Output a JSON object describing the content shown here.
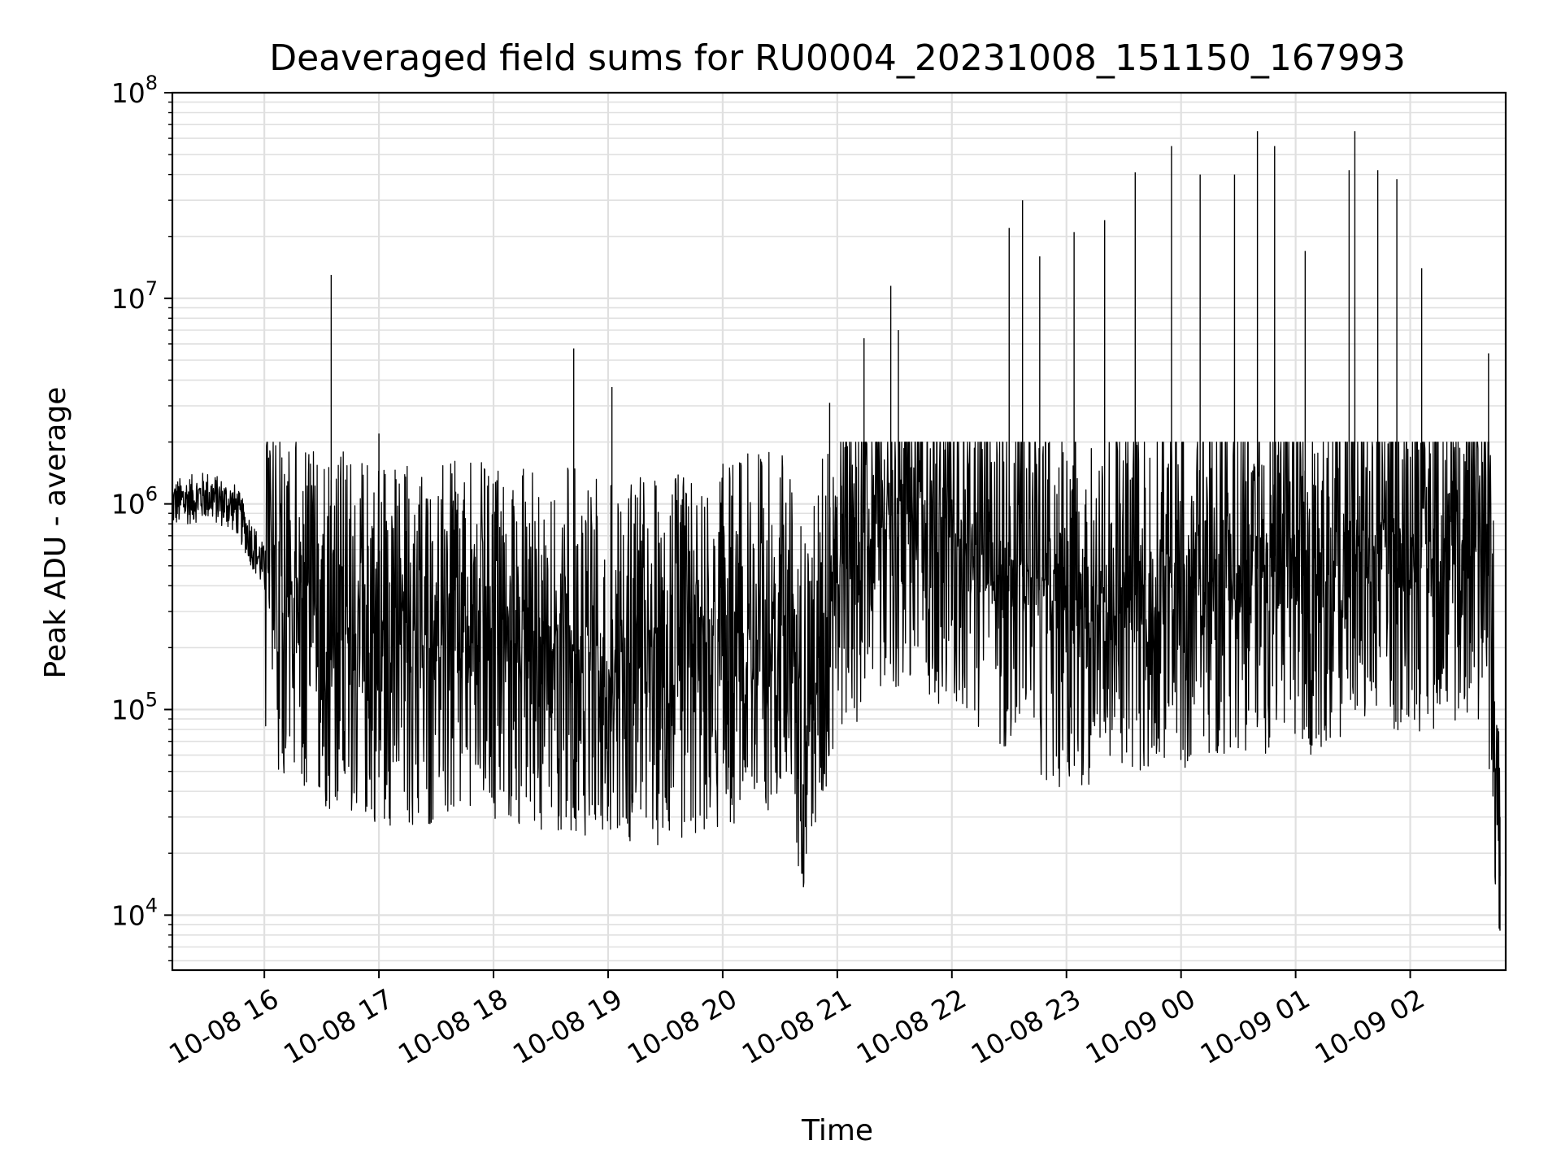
{
  "chart_data": {
    "type": "line",
    "title": "Deaveraged field sums for RU0004_20231008_151150_167993",
    "xlabel": "Time",
    "ylabel": "Peak ADU - average",
    "x_range": [
      "2023-10-08 15:11:50",
      "2023-10-09 02:50:00"
    ],
    "y_scale": "log",
    "ylim": [
      5400,
      100000000
    ],
    "grid": true,
    "line_color": "#000000",
    "grid_color": "#e0e0e0",
    "x_ticks": [
      {
        "value": "2023-10-08 16:00",
        "label": "10-08 16"
      },
      {
        "value": "2023-10-08 17:00",
        "label": "10-08 17"
      },
      {
        "value": "2023-10-08 18:00",
        "label": "10-08 18"
      },
      {
        "value": "2023-10-08 19:00",
        "label": "10-08 19"
      },
      {
        "value": "2023-10-08 20:00",
        "label": "10-08 20"
      },
      {
        "value": "2023-10-08 21:00",
        "label": "10-08 21"
      },
      {
        "value": "2023-10-08 22:00",
        "label": "10-08 22"
      },
      {
        "value": "2023-10-08 23:00",
        "label": "10-08 23"
      },
      {
        "value": "2023-10-09 00:00",
        "label": "10-09 00"
      },
      {
        "value": "2023-10-09 01:00",
        "label": "10-09 01"
      },
      {
        "value": "2023-10-09 02:00",
        "label": "10-09 02"
      }
    ],
    "y_ticks": [
      {
        "value": 10000,
        "base": "10",
        "exp": "4"
      },
      {
        "value": 100000,
        "base": "10",
        "exp": "5"
      },
      {
        "value": 1000000,
        "base": "10",
        "exp": "6"
      },
      {
        "value": 10000000,
        "base": "10",
        "exp": "7"
      },
      {
        "value": 100000000,
        "base": "10",
        "exp": "8"
      }
    ],
    "series": [
      {
        "points": [
          [
            "2023-10-08 15:11:50",
            1000000
          ],
          [
            "2023-10-08 15:30",
            1100000
          ],
          [
            "2023-10-08 15:45",
            950000
          ],
          [
            "2023-10-08 15:55",
            600000
          ],
          [
            "2023-10-08 16:10",
            300000
          ],
          [
            "2023-10-08 16:30",
            250000
          ],
          [
            "2023-10-08 17:00",
            220000
          ],
          [
            "2023-10-08 17:30",
            200000
          ],
          [
            "2023-10-08 18:00",
            210000
          ],
          [
            "2023-10-08 18:30",
            200000
          ],
          [
            "2023-10-08 19:00",
            180000
          ],
          [
            "2023-10-08 19:30",
            170000
          ],
          [
            "2023-10-08 20:00",
            200000
          ],
          [
            "2023-10-08 20:30",
            250000
          ],
          [
            "2023-10-08 20:45",
            90000
          ],
          [
            "2023-10-08 21:00",
            600000
          ],
          [
            "2023-10-08 21:30",
            900000
          ],
          [
            "2023-10-08 22:00",
            800000
          ],
          [
            "2023-10-08 22:30",
            500000
          ],
          [
            "2023-10-08 23:00",
            300000
          ],
          [
            "2023-10-08 23:30",
            350000
          ],
          [
            "2023-10-09 00:00",
            400000
          ],
          [
            "2023-10-09 00:30",
            500000
          ],
          [
            "2023-10-09 01:00",
            450000
          ],
          [
            "2023-10-09 01:30",
            550000
          ],
          [
            "2023-10-09 02:00",
            600000
          ],
          [
            "2023-10-09 02:40",
            700000
          ],
          [
            "2023-10-09 02:47",
            30000
          ]
        ],
        "spikes": [
          [
            "2023-10-08 16:35",
            13000000
          ],
          [
            "2023-10-08 17:00",
            2200000
          ],
          [
            "2023-10-08 18:42",
            5700000
          ],
          [
            "2023-10-08 19:02",
            3700000
          ],
          [
            "2023-10-08 21:14",
            6400000
          ],
          [
            "2023-10-08 21:28",
            11500000
          ],
          [
            "2023-10-08 21:32",
            7000000
          ],
          [
            "2023-10-08 22:30",
            22000000
          ],
          [
            "2023-10-08 22:37",
            30000000
          ],
          [
            "2023-10-08 23:20",
            24000000
          ],
          [
            "2023-10-08 23:36",
            41000000
          ],
          [
            "2023-10-08 23:55",
            55000000
          ],
          [
            "2023-10-09 00:10",
            40000000
          ],
          [
            "2023-10-09 00:28",
            40000000
          ],
          [
            "2023-10-09 00:40",
            65000000
          ],
          [
            "2023-10-09 00:49",
            55000000
          ],
          [
            "2023-10-09 01:05",
            17000000
          ],
          [
            "2023-10-09 01:28",
            42000000
          ],
          [
            "2023-10-09 01:31",
            65000000
          ],
          [
            "2023-10-09 01:43",
            42000000
          ],
          [
            "2023-10-09 01:53",
            38000000
          ],
          [
            "2023-10-09 02:06",
            14000000
          ],
          [
            "2023-10-09 02:41",
            5400000
          ],
          [
            "2023-10-09 02:47",
            8400
          ],
          [
            "2023-10-08 20:56",
            3100000
          ],
          [
            "2023-10-08 22:46",
            16000000
          ],
          [
            "2023-10-08 23:04",
            21000000
          ]
        ]
      }
    ]
  }
}
